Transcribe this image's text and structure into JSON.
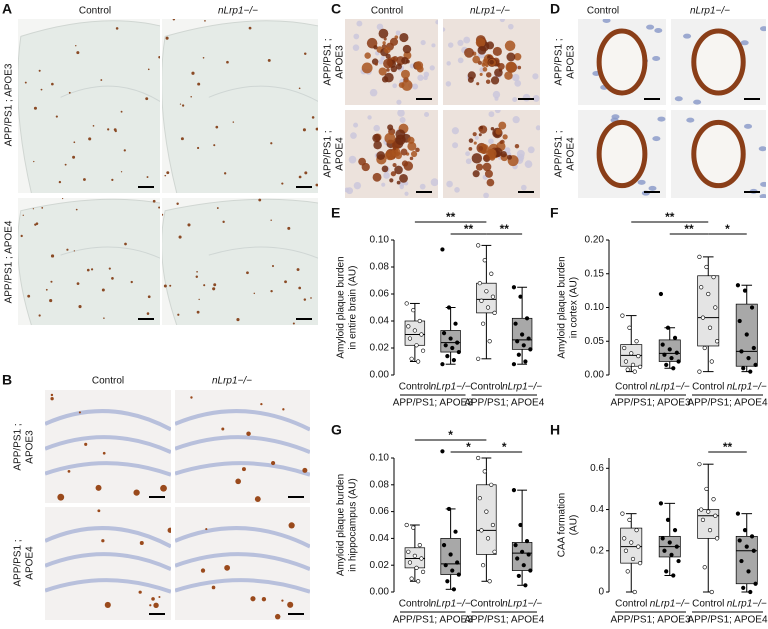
{
  "panels": {
    "A": {
      "letter": "A",
      "columns": [
        "Control",
        "nLrp1−/−"
      ],
      "rows": [
        [
          "APP/PS1 ; APOE3"
        ],
        [
          "APP/PS1 ; APOE4"
        ]
      ]
    },
    "B": {
      "letter": "B",
      "columns": [
        "Control",
        "nLrp1−/−"
      ],
      "rows": [
        [
          "APP/PS1 ;",
          "APOE3"
        ],
        [
          "APP/PS1 ;",
          "APOE4"
        ]
      ]
    },
    "C": {
      "letter": "C",
      "columns": [
        "Control",
        "nLrp1−/−"
      ],
      "rows": [
        [
          "APP/PS1 ;",
          "APOE3"
        ],
        [
          "APP/PS1 ;",
          "APOE4"
        ]
      ]
    },
    "D": {
      "letter": "D",
      "columns": [
        "Control",
        "nLrp1−/−"
      ],
      "rows": [
        [
          "APP/PS1 ;",
          "APOE3"
        ],
        [
          "APP/PS1 ;",
          "APOE4"
        ]
      ]
    }
  },
  "chart_data": [
    {
      "type": "box",
      "panel": "E",
      "ylabel": [
        "Amyloid plaque burden",
        "in entire brain (AU)"
      ],
      "ylim": [
        0,
        0.1
      ],
      "yticks": [
        {
          "value": 0,
          "label": "0.00"
        },
        0.02,
        0.04,
        0.06,
        0.08,
        {
          "value": 0.1,
          "label": "0.10"
        }
      ],
      "categories": [
        "Control",
        "nLrp1−/−",
        "Control",
        "nLrp1−/−"
      ],
      "group_labels": [
        "APP/PS1; APOE3",
        "APP/PS1; APOE4"
      ],
      "boxes": [
        {
          "color": "#e4e4e4",
          "point_fill": "#ffffff",
          "whisker_low": 0.01,
          "q1": 0.022,
          "median": 0.03,
          "q3": 0.04,
          "whisker_high": 0.053,
          "points": [
            0.053,
            0.048,
            0.04,
            0.036,
            0.033,
            0.03,
            0.027,
            0.022,
            0.018,
            0.012,
            0.01
          ]
        },
        {
          "color": "#a8a8a8",
          "point_fill": "#000000",
          "whisker_low": 0.008,
          "q1": 0.017,
          "median": 0.024,
          "q3": 0.033,
          "whisker_high": 0.05,
          "points": [
            0.093,
            0.05,
            0.038,
            0.031,
            0.027,
            0.024,
            0.022,
            0.02,
            0.017,
            0.014,
            0.011,
            0.008
          ]
        },
        {
          "color": "#e4e4e4",
          "point_fill": "#ffffff",
          "whisker_low": 0.012,
          "q1": 0.046,
          "median": 0.056,
          "q3": 0.068,
          "whisker_high": 0.096,
          "points": [
            0.096,
            0.085,
            0.075,
            0.068,
            0.062,
            0.058,
            0.055,
            0.05,
            0.046,
            0.038,
            0.025,
            0.012
          ]
        },
        {
          "color": "#a8a8a8",
          "point_fill": "#000000",
          "whisker_low": 0.008,
          "q1": 0.019,
          "median": 0.026,
          "q3": 0.042,
          "whisker_high": 0.065,
          "points": [
            0.065,
            0.058,
            0.042,
            0.038,
            0.03,
            0.027,
            0.025,
            0.022,
            0.019,
            0.015,
            0.01,
            0.008
          ]
        }
      ],
      "significance": [
        {
          "between": [
            0,
            2
          ],
          "label": "**"
        },
        {
          "between": [
            1,
            2
          ],
          "label": "**"
        },
        {
          "between": [
            2,
            3
          ],
          "label": "**"
        }
      ]
    },
    {
      "type": "box",
      "panel": "F",
      "ylabel": [
        "Amyloid plaque burden",
        "in cortex (AU)"
      ],
      "ylim": [
        0,
        0.2
      ],
      "yticks": [
        {
          "value": 0,
          "label": "0.00"
        },
        0.05,
        {
          "value": 0.1,
          "label": "0.10"
        },
        0.15,
        {
          "value": 0.2,
          "label": "0.20"
        }
      ],
      "categories": [
        "Control",
        "nLrp1−/−",
        "Control",
        "nLrp1−/−"
      ],
      "group_labels": [
        "APP/PS1; APOE3",
        "APP/PS1; APOE4"
      ],
      "boxes": [
        {
          "color": "#e4e4e4",
          "point_fill": "#ffffff",
          "whisker_low": 0.005,
          "q1": 0.013,
          "median": 0.029,
          "q3": 0.045,
          "whisker_high": 0.088,
          "points": [
            0.088,
            0.07,
            0.05,
            0.04,
            0.032,
            0.028,
            0.02,
            0.015,
            0.012,
            0.008,
            0.005
          ]
        },
        {
          "color": "#a8a8a8",
          "point_fill": "#000000",
          "whisker_low": 0.01,
          "q1": 0.02,
          "median": 0.032,
          "q3": 0.052,
          "whisker_high": 0.07,
          "points": [
            0.12,
            0.07,
            0.055,
            0.045,
            0.038,
            0.033,
            0.03,
            0.025,
            0.02,
            0.015,
            0.01
          ]
        },
        {
          "color": "#e4e4e4",
          "point_fill": "#ffffff",
          "whisker_low": 0.005,
          "q1": 0.043,
          "median": 0.085,
          "q3": 0.147,
          "whisker_high": 0.175,
          "points": [
            0.175,
            0.16,
            0.145,
            0.13,
            0.12,
            0.1,
            0.085,
            0.07,
            0.05,
            0.04,
            0.02,
            0.005
          ]
        },
        {
          "color": "#a8a8a8",
          "point_fill": "#000000",
          "whisker_low": 0.005,
          "q1": 0.013,
          "median": 0.035,
          "q3": 0.105,
          "whisker_high": 0.133,
          "points": [
            0.133,
            0.125,
            0.1,
            0.08,
            0.06,
            0.04,
            0.035,
            0.025,
            0.015,
            0.01,
            0.005
          ]
        }
      ],
      "significance": [
        {
          "between": [
            0,
            2
          ],
          "label": "**"
        },
        {
          "between": [
            1,
            2
          ],
          "label": "**"
        },
        {
          "between": [
            2,
            3
          ],
          "label": "*"
        }
      ]
    },
    {
      "type": "box",
      "panel": "G",
      "ylabel": [
        "Amyloid plaque burden",
        "in hippocampus (AU)"
      ],
      "ylim": [
        0,
        0.1
      ],
      "yticks": [
        {
          "value": 0,
          "label": "0.00"
        },
        0.02,
        0.04,
        0.06,
        0.08,
        {
          "value": 0.1,
          "label": "0.10"
        }
      ],
      "categories": [
        "Control",
        "nLrp1−/−",
        "Control",
        "nLrp1−/−"
      ],
      "group_labels": [
        "APP/PS1; APOE3",
        "APP/PS1; APOE4"
      ],
      "boxes": [
        {
          "color": "#e4e4e4",
          "point_fill": "#ffffff",
          "whisker_low": 0.008,
          "q1": 0.018,
          "median": 0.025,
          "q3": 0.033,
          "whisker_high": 0.05,
          "points": [
            0.05,
            0.048,
            0.035,
            0.03,
            0.027,
            0.025,
            0.022,
            0.018,
            0.015,
            0.01,
            0.008
          ]
        },
        {
          "color": "#a8a8a8",
          "point_fill": "#000000",
          "whisker_low": 0.002,
          "q1": 0.013,
          "median": 0.021,
          "q3": 0.04,
          "whisker_high": 0.062,
          "points": [
            0.105,
            0.062,
            0.045,
            0.035,
            0.028,
            0.022,
            0.02,
            0.016,
            0.013,
            0.008,
            0.002
          ]
        },
        {
          "color": "#e4e4e4",
          "point_fill": "#ffffff",
          "whisker_low": 0.008,
          "q1": 0.028,
          "median": 0.046,
          "q3": 0.08,
          "whisker_high": 0.1,
          "points": [
            0.1,
            0.09,
            0.08,
            0.07,
            0.06,
            0.05,
            0.046,
            0.04,
            0.03,
            0.02,
            0.008
          ]
        },
        {
          "color": "#a8a8a8",
          "point_fill": "#000000",
          "whisker_low": 0.005,
          "q1": 0.016,
          "median": 0.029,
          "q3": 0.037,
          "whisker_high": 0.076,
          "points": [
            0.076,
            0.05,
            0.038,
            0.035,
            0.03,
            0.028,
            0.025,
            0.02,
            0.016,
            0.012,
            0.005
          ]
        }
      ],
      "significance": [
        {
          "between": [
            0,
            2
          ],
          "label": "*"
        },
        {
          "between": [
            1,
            2
          ],
          "label": "*"
        },
        {
          "between": [
            2,
            3
          ],
          "label": "*"
        }
      ]
    },
    {
      "type": "box",
      "panel": "H",
      "ylabel": [
        "CAA formation",
        "(AU)"
      ],
      "ylim": [
        0,
        0.65
      ],
      "yticks": [
        0,
        0.2,
        0.4,
        0.6
      ],
      "categories": [
        "Control",
        "nLrp1−/−",
        "Control",
        "nLrp1−/−"
      ],
      "group_labels": [
        "APP/PS1; APOE3",
        "APP/PS1; APOE4"
      ],
      "boxes": [
        {
          "color": "#e4e4e4",
          "point_fill": "#ffffff",
          "whisker_low": 0.0,
          "q1": 0.14,
          "median": 0.22,
          "q3": 0.31,
          "whisker_high": 0.38,
          "points": [
            0.38,
            0.35,
            0.3,
            0.26,
            0.24,
            0.22,
            0.2,
            0.16,
            0.14,
            0.1,
            0.0
          ]
        },
        {
          "color": "#a8a8a8",
          "point_fill": "#000000",
          "whisker_low": 0.08,
          "q1": 0.17,
          "median": 0.22,
          "q3": 0.27,
          "whisker_high": 0.43,
          "points": [
            0.43,
            0.35,
            0.3,
            0.26,
            0.24,
            0.22,
            0.2,
            0.18,
            0.15,
            0.1,
            0.08
          ]
        },
        {
          "color": "#e4e4e4",
          "point_fill": "#ffffff",
          "whisker_low": 0.0,
          "q1": 0.26,
          "median": 0.37,
          "q3": 0.4,
          "whisker_high": 0.62,
          "points": [
            0.62,
            0.5,
            0.45,
            0.4,
            0.39,
            0.37,
            0.35,
            0.3,
            0.26,
            0.12,
            0.0
          ]
        },
        {
          "color": "#a8a8a8",
          "point_fill": "#000000",
          "whisker_low": 0.0,
          "q1": 0.04,
          "median": 0.2,
          "q3": 0.27,
          "whisker_high": 0.38,
          "points": [
            0.38,
            0.3,
            0.27,
            0.25,
            0.22,
            0.2,
            0.15,
            0.1,
            0.04,
            0.02,
            0.0
          ]
        }
      ],
      "significance": [
        {
          "between": [
            2,
            3
          ],
          "label": "**"
        }
      ]
    }
  ]
}
